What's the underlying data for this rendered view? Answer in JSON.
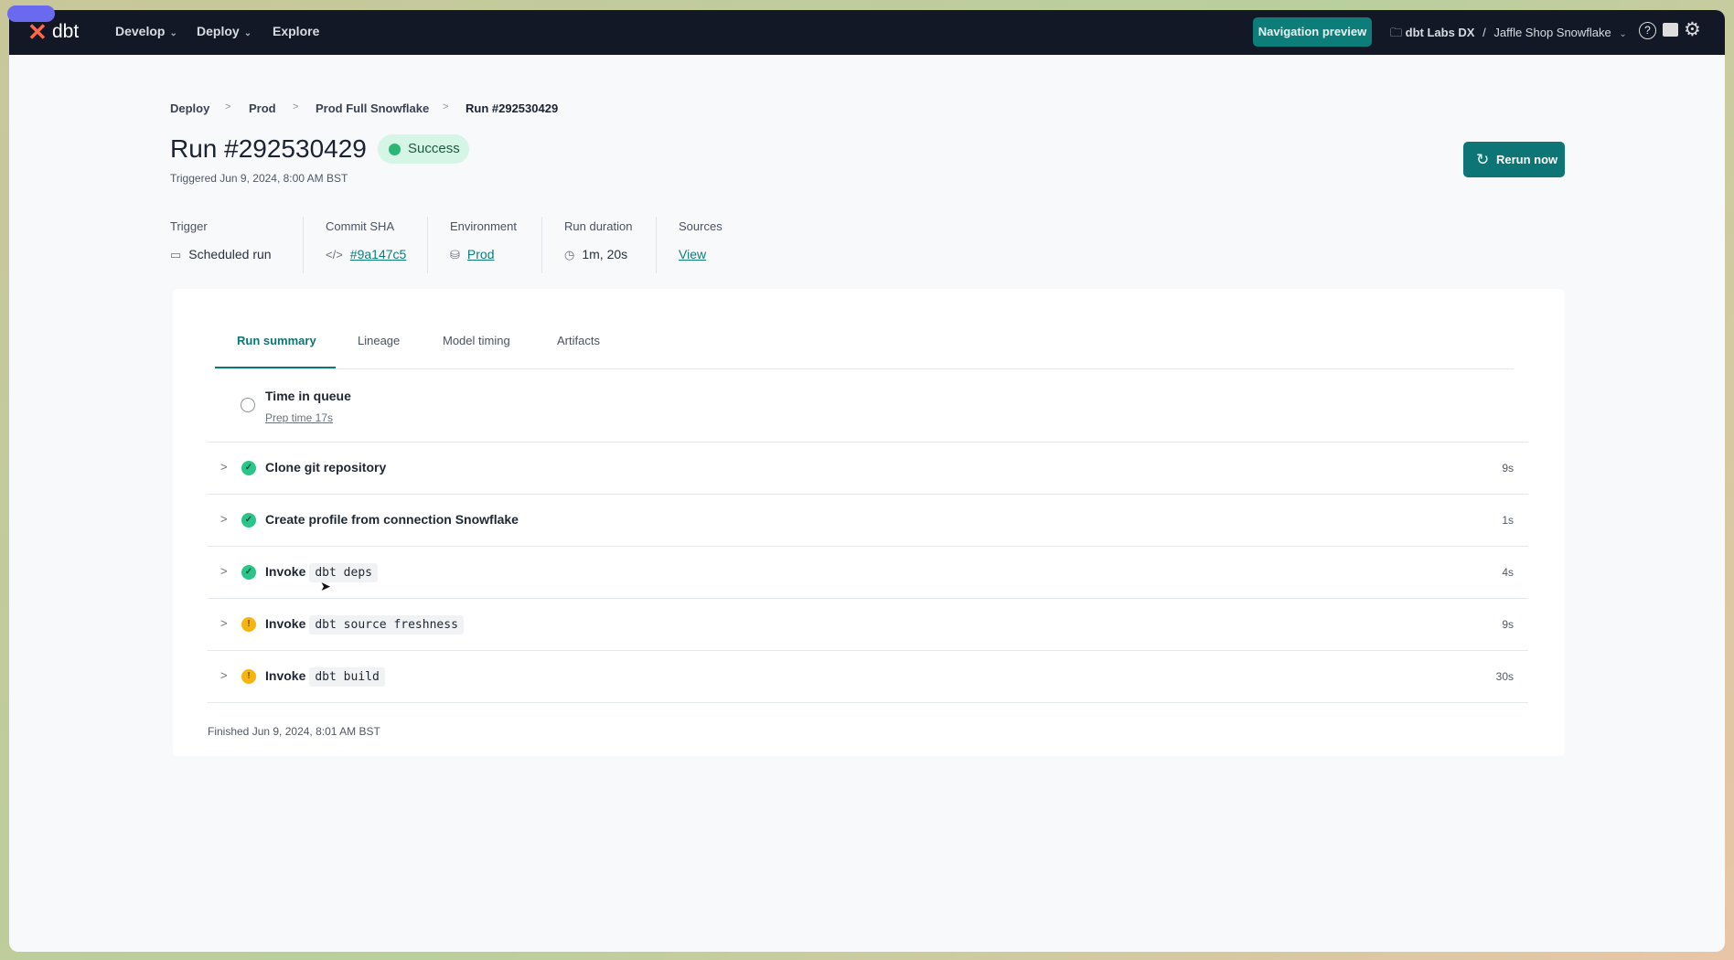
{
  "nav": {
    "logo": "dbt",
    "items": [
      {
        "label": "Develop",
        "dropdown": true
      },
      {
        "label": "Deploy",
        "dropdown": true
      },
      {
        "label": "Explore",
        "dropdown": false
      }
    ],
    "preview_button": "Navigation preview",
    "account": "dbt Labs DX",
    "separator": "/",
    "project": "Jaffle Shop Snowflake",
    "icons": [
      "help-icon",
      "feedback-icon",
      "gear-icon"
    ]
  },
  "breadcrumb": [
    "Deploy",
    "Prod",
    "Prod Full Snowflake",
    "Run #292530429"
  ],
  "header": {
    "title": "Run #292530429",
    "status": "Success",
    "triggered": "Triggered Jun 9, 2024, 8:00 AM BST",
    "rerun_label": "Rerun now"
  },
  "meta": [
    {
      "label": "Trigger",
      "value": "Scheduled run",
      "icon": "calendar-icon",
      "link": false
    },
    {
      "label": "Commit SHA",
      "value": "#9a147c5",
      "icon": "code-icon",
      "link": true
    },
    {
      "label": "Environment",
      "value": "Prod",
      "icon": "database-icon",
      "link": true
    },
    {
      "label": "Run duration",
      "value": "1m, 20s",
      "icon": "clock-icon",
      "link": false
    },
    {
      "label": "Sources",
      "value": "View",
      "link": true
    }
  ],
  "tabs": [
    {
      "label": "Run summary",
      "active": true
    },
    {
      "label": "Lineage"
    },
    {
      "label": "Model timing"
    },
    {
      "label": "Artifacts"
    }
  ],
  "queue": {
    "title": "Time in queue",
    "prep": "Prep time 17s"
  },
  "steps": [
    {
      "label": "Clone git repository",
      "code": "",
      "status": "success",
      "duration": "9s"
    },
    {
      "label": "Create profile from connection Snowflake",
      "code": "",
      "status": "success",
      "duration": "1s"
    },
    {
      "label": "Invoke",
      "code": "dbt deps",
      "status": "success",
      "duration": "4s"
    },
    {
      "label": "Invoke",
      "code": "dbt source freshness",
      "status": "warning",
      "duration": "9s"
    },
    {
      "label": "Invoke",
      "code": "dbt build",
      "status": "warning",
      "duration": "30s"
    }
  ],
  "finished": "Finished Jun 9, 2024, 8:01 AM BST",
  "colors": {
    "brand": "#0d7575",
    "success": "#2bc48a",
    "warning": "#f5b50f",
    "nav_bg": "#121826",
    "logo": "#ff694a"
  }
}
